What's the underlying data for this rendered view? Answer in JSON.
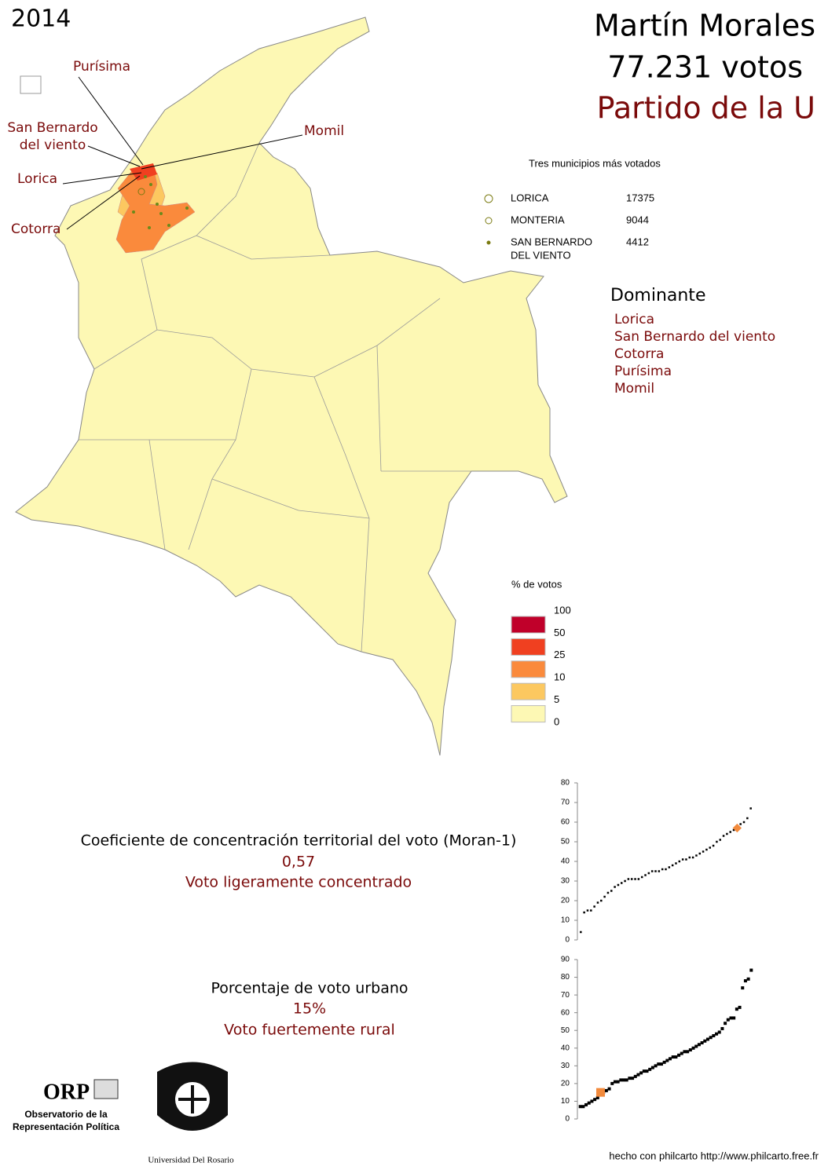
{
  "year": "2014",
  "header": {
    "name": "Martín Morales",
    "votes": "77.231 votos",
    "party": "Partido de la U"
  },
  "map_labels": {
    "purisima": "Purísima",
    "san_bernardo": [
      "San Bernardo",
      "del viento"
    ],
    "momil": "Momil",
    "lorica": "Lorica",
    "cotorra": "Cotorra"
  },
  "top_municipios": {
    "title": "Tres municipios más votados",
    "items": [
      {
        "name": [
          "LORICA"
        ],
        "votes": "17375"
      },
      {
        "name": [
          "MONTERIA"
        ],
        "votes": "9044"
      },
      {
        "name": [
          "SAN BERNARDO",
          "DEL VIENTO"
        ],
        "votes": "4412"
      }
    ]
  },
  "dominante": {
    "title": "Dominante",
    "items": [
      "Lorica",
      "San Bernardo del viento",
      "Cotorra",
      "Purísima",
      "Momil"
    ]
  },
  "legend": {
    "title": "% de votos",
    "breaks": [
      100,
      50,
      25,
      10,
      5,
      0
    ],
    "colors": [
      "#c0002a",
      "#f04020",
      "#fa8a3c",
      "#fcc860",
      "#fdf8b4"
    ]
  },
  "moran": {
    "label": "Coeficiente de concentración territorial del voto (Moran-1)",
    "value": "0,57",
    "description": "Voto ligeramente concentrado"
  },
  "urban": {
    "label": "Porcentaje de voto urbano",
    "value": "15%",
    "description": "Voto fuertemente rural"
  },
  "logos": {
    "orp": "ORP",
    "orp_line1": "Observatorio de la",
    "orp_line2": "Representación Política",
    "university": "Universidad Del Rosario"
  },
  "footer": "hecho con philcarto http://www.philcarto.free.fr",
  "chart_data": [
    {
      "type": "scatter",
      "ylim": [
        0,
        80
      ],
      "yticks": [
        0,
        10,
        20,
        30,
        40,
        50,
        60,
        70,
        80
      ],
      "xlim": [
        0,
        52
      ],
      "series": [
        {
          "color": "#000000",
          "x": [
            1,
            2,
            3,
            4,
            5,
            6,
            7,
            8,
            9,
            10,
            11,
            12,
            13,
            14,
            15,
            16,
            17,
            18,
            19,
            20,
            21,
            22,
            23,
            24,
            25,
            26,
            27,
            28,
            29,
            30,
            31,
            32,
            33,
            34,
            35,
            36,
            37,
            38,
            39,
            40,
            41,
            42,
            43,
            44,
            45,
            46,
            47,
            48,
            49,
            50,
            51
          ],
          "values": [
            4,
            14,
            15,
            15,
            17,
            19,
            20,
            22,
            24,
            25,
            27,
            28,
            29,
            30,
            31,
            31,
            31,
            31,
            32,
            33,
            34,
            35,
            35,
            35,
            36,
            36,
            37,
            38,
            39,
            40,
            41,
            41,
            42,
            42,
            43,
            44,
            45,
            46,
            47,
            48,
            50,
            51,
            53,
            54,
            55,
            56,
            58,
            59,
            60,
            62,
            67
          ]
        },
        {
          "color": "#f28a3c",
          "x": [
            47
          ],
          "values": [
            57
          ]
        }
      ]
    },
    {
      "type": "scatter",
      "ylim": [
        0,
        90
      ],
      "yticks": [
        0,
        10,
        20,
        30,
        40,
        50,
        60,
        70,
        80,
        90
      ],
      "xlim": [
        0,
        61
      ],
      "series": [
        {
          "color": "#000000",
          "x": [
            1,
            2,
            3,
            4,
            5,
            6,
            7,
            8,
            9,
            10,
            11,
            12,
            13,
            14,
            15,
            16,
            17,
            18,
            19,
            20,
            21,
            22,
            23,
            24,
            25,
            26,
            27,
            28,
            29,
            30,
            31,
            32,
            33,
            34,
            35,
            36,
            37,
            38,
            39,
            40,
            41,
            42,
            43,
            44,
            45,
            46,
            47,
            48,
            49,
            50,
            51,
            52,
            53,
            54,
            55,
            56,
            57,
            58,
            59,
            60
          ],
          "values": [
            7,
            7,
            8,
            9,
            10,
            11,
            12,
            14,
            15,
            16,
            17,
            20,
            21,
            21,
            22,
            22,
            22,
            23,
            23,
            24,
            25,
            26,
            27,
            27,
            28,
            29,
            30,
            31,
            31,
            32,
            33,
            34,
            35,
            35,
            36,
            37,
            38,
            38,
            39,
            40,
            41,
            42,
            43,
            44,
            45,
            46,
            47,
            48,
            49,
            51,
            54,
            56,
            57,
            57,
            62,
            63,
            74,
            78,
            79,
            84
          ]
        },
        {
          "color": "#f28a3c",
          "x": [
            8
          ],
          "values": [
            15
          ]
        }
      ]
    }
  ]
}
